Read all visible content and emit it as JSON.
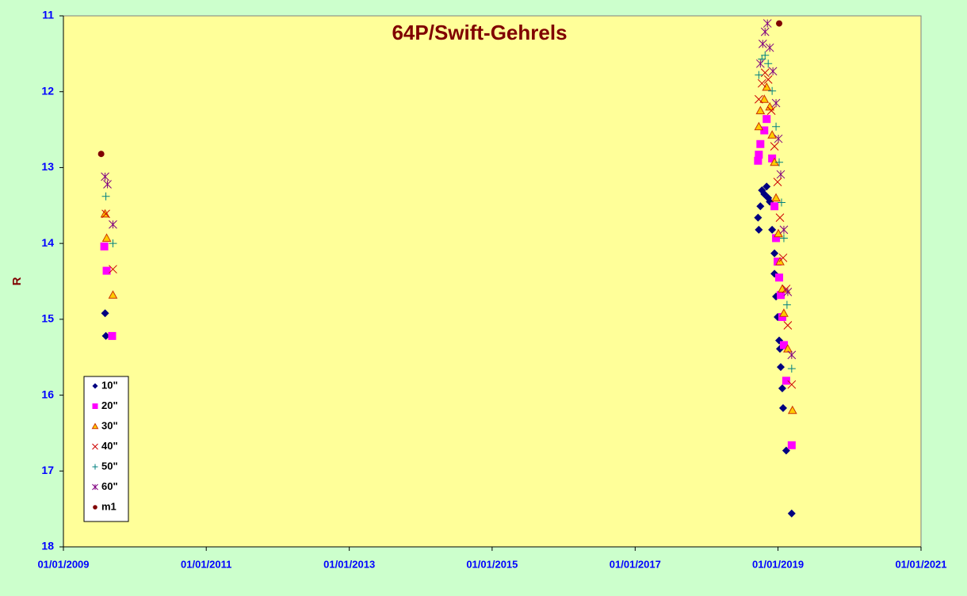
{
  "chart_data": {
    "type": "scatter",
    "title": "64P/Swift-Gehrels",
    "y_label": "R",
    "xlim": [
      "2009-01-01",
      "2021-01-01"
    ],
    "xticks": [
      {
        "value": "2009-01-01",
        "label": "01/01/2009"
      },
      {
        "value": "2011-01-01",
        "label": "01/01/2011"
      },
      {
        "value": "2013-01-01",
        "label": "01/01/2013"
      },
      {
        "value": "2015-01-01",
        "label": "01/01/2015"
      },
      {
        "value": "2017-01-01",
        "label": "01/01/2017"
      },
      {
        "value": "2019-01-01",
        "label": "01/01/2019"
      },
      {
        "value": "2021-01-01",
        "label": "01/01/2021"
      }
    ],
    "ylim": [
      11,
      18
    ],
    "yticks": [
      11,
      12,
      13,
      14,
      15,
      16,
      17,
      18
    ],
    "y_reversed": true,
    "grid": false,
    "legend": "lower-left",
    "series": [
      {
        "name": "10\"",
        "color": "#000080",
        "marker": "diamond",
        "x": [
          "2009-08-02",
          "2009-08-06",
          "2018-09-21",
          "2018-09-25",
          "2018-10-03",
          "2018-10-11",
          "2018-10-23",
          "2018-11-04",
          "2018-11-12",
          "2018-11-20",
          "2018-12-02",
          "2018-12-14",
          "2018-12-14",
          "2018-12-22",
          "2018-12-30",
          "2019-01-07",
          "2019-01-11",
          "2019-01-15",
          "2019-01-23",
          "2019-01-27",
          "2019-02-12",
          "2019-03-12"
        ],
        "values": [
          14.92,
          15.22,
          13.66,
          13.82,
          13.51,
          13.3,
          13.35,
          13.25,
          13.4,
          13.45,
          13.82,
          14.13,
          14.4,
          14.7,
          14.97,
          15.28,
          15.39,
          15.63,
          15.91,
          16.17,
          16.73,
          17.56
        ]
      },
      {
        "name": "20\"",
        "color": "#ff00ff",
        "marker": "square",
        "x": [
          "2009-07-29",
          "2009-08-10",
          "2009-09-07",
          "2018-09-21",
          "2018-09-25",
          "2018-10-03",
          "2018-10-23",
          "2018-11-04",
          "2018-12-02",
          "2018-12-14",
          "2018-12-22",
          "2018-12-30",
          "2019-01-07",
          "2019-01-15",
          "2019-01-23",
          "2019-01-31",
          "2019-02-12",
          "2019-03-12"
        ],
        "values": [
          14.04,
          14.36,
          15.22,
          12.91,
          12.83,
          12.69,
          12.51,
          12.36,
          12.88,
          13.51,
          13.93,
          14.24,
          14.45,
          14.68,
          14.97,
          15.34,
          15.81,
          16.66
        ]
      },
      {
        "name": "30\"",
        "color": "#ffcc00",
        "marker": "triangle",
        "x": [
          "2009-08-02",
          "2009-08-10",
          "2009-09-11",
          "2018-09-25",
          "2018-10-03",
          "2018-10-23",
          "2018-11-04",
          "2018-11-20",
          "2018-12-02",
          "2018-12-14",
          "2018-12-22",
          "2019-01-03",
          "2019-01-11",
          "2019-01-23",
          "2019-01-31",
          "2019-02-20",
          "2019-03-16"
        ],
        "values": [
          13.61,
          13.93,
          14.68,
          12.46,
          12.25,
          12.1,
          11.94,
          12.2,
          12.57,
          12.93,
          13.4,
          13.87,
          14.24,
          14.6,
          14.92,
          15.39,
          16.2
        ]
      },
      {
        "name": "40\"",
        "color": "#cc0000",
        "marker": "x",
        "x": [
          "2009-08-06",
          "2009-09-11",
          "2018-09-25",
          "2018-10-11",
          "2018-10-27",
          "2018-11-12",
          "2018-11-28",
          "2018-12-14",
          "2018-12-30",
          "2019-01-11",
          "2019-01-27",
          "2019-02-12",
          "2019-02-20",
          "2019-03-12"
        ],
        "values": [
          13.61,
          14.34,
          12.1,
          11.89,
          11.75,
          11.84,
          12.25,
          12.72,
          13.19,
          13.66,
          14.19,
          14.6,
          15.08,
          15.86
        ]
      },
      {
        "name": "50\"",
        "color": "#008080",
        "marker": "plus",
        "x": [
          "2009-08-06",
          "2009-09-11",
          "2018-09-25",
          "2018-10-11",
          "2018-10-27",
          "2018-11-12",
          "2018-12-02",
          "2018-12-22",
          "2019-01-07",
          "2019-01-19",
          "2019-01-31",
          "2019-02-16",
          "2019-03-12"
        ],
        "values": [
          13.38,
          14.0,
          11.78,
          11.57,
          11.52,
          11.63,
          11.99,
          12.46,
          12.93,
          13.46,
          13.93,
          14.81,
          15.65
        ]
      },
      {
        "name": "60\"",
        "color": "#800080",
        "marker": "star",
        "x": [
          "2009-08-02",
          "2009-08-14",
          "2009-09-11",
          "2018-10-03",
          "2018-10-15",
          "2018-10-27",
          "2018-11-08",
          "2018-11-20",
          "2018-12-06",
          "2018-12-22",
          "2019-01-03",
          "2019-01-15",
          "2019-01-31",
          "2019-02-20",
          "2019-03-12"
        ],
        "values": [
          13.12,
          13.22,
          13.75,
          11.63,
          11.37,
          11.21,
          11.1,
          11.42,
          11.73,
          12.15,
          12.62,
          13.09,
          13.82,
          14.64,
          15.47
        ]
      },
      {
        "name": "m1",
        "color": "#800000",
        "marker": "circle",
        "x": [
          "2009-07-13",
          "2019-01-07"
        ],
        "values": [
          12.82,
          11.1
        ]
      }
    ]
  }
}
